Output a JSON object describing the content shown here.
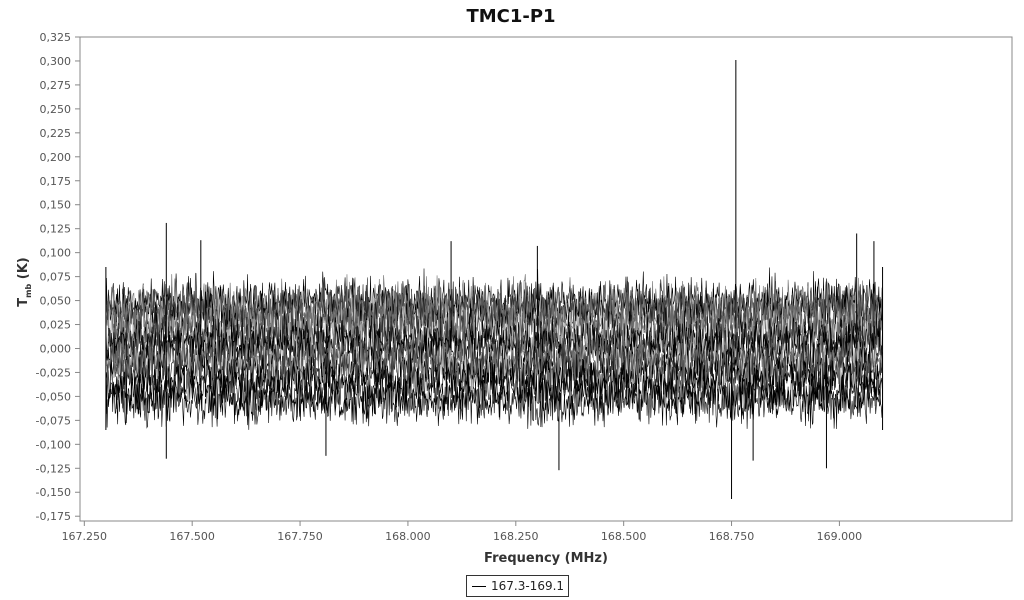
{
  "chart_data": {
    "type": "line",
    "title": "TMC1-P1",
    "xlabel": "Frequency (MHz)",
    "ylabel_main": "T",
    "ylabel_sub": "mb",
    "ylabel_unit": "(K)",
    "xlim": [
      167.24,
      169.4
    ],
    "ylim": [
      -0.18,
      0.325
    ],
    "x_ticks": [
      {
        "value": 167.25,
        "label": "167.250"
      },
      {
        "value": 167.5,
        "label": "167.500"
      },
      {
        "value": 167.75,
        "label": "167.750"
      },
      {
        "value": 168.0,
        "label": "168.000"
      },
      {
        "value": 168.25,
        "label": "168.250"
      },
      {
        "value": 168.5,
        "label": "168.500"
      },
      {
        "value": 168.75,
        "label": "168.750"
      },
      {
        "value": 169.0,
        "label": "169.000"
      }
    ],
    "y_ticks": [
      {
        "value": 0.325,
        "label": "0,325"
      },
      {
        "value": 0.3,
        "label": "0,300"
      },
      {
        "value": 0.275,
        "label": "0,275"
      },
      {
        "value": 0.25,
        "label": "0,250"
      },
      {
        "value": 0.225,
        "label": "0,225"
      },
      {
        "value": 0.2,
        "label": "0,200"
      },
      {
        "value": 0.175,
        "label": "0,175"
      },
      {
        "value": 0.15,
        "label": "0,150"
      },
      {
        "value": 0.125,
        "label": "0,125"
      },
      {
        "value": 0.1,
        "label": "0,100"
      },
      {
        "value": 0.075,
        "label": "0,075"
      },
      {
        "value": 0.05,
        "label": "0,050"
      },
      {
        "value": 0.025,
        "label": "0,025"
      },
      {
        "value": 0.0,
        "label": "0,000"
      },
      {
        "value": -0.025,
        "label": "-0,025"
      },
      {
        "value": -0.05,
        "label": "-0,050"
      },
      {
        "value": -0.075,
        "label": "-0,075"
      },
      {
        "value": -0.1,
        "label": "-0,100"
      },
      {
        "value": -0.125,
        "label": "-0,125"
      },
      {
        "value": -0.15,
        "label": "-0,150"
      },
      {
        "value": -0.175,
        "label": "-0,175"
      }
    ],
    "grid": false,
    "legend_position": "bottom-center",
    "series": [
      {
        "name": "167.3-169.1",
        "color": "#000000",
        "x_range": [
          167.3,
          169.1
        ],
        "noise_range": [
          -0.085,
          0.085
        ],
        "peaks": [
          {
            "x": 167.44,
            "y": 0.131
          },
          {
            "x": 167.52,
            "y": 0.113
          },
          {
            "x": 168.1,
            "y": 0.112
          },
          {
            "x": 168.3,
            "y": 0.107
          },
          {
            "x": 168.76,
            "y": 0.301
          },
          {
            "x": 169.04,
            "y": 0.12
          },
          {
            "x": 169.08,
            "y": 0.112
          }
        ],
        "troughs": [
          {
            "x": 167.44,
            "y": -0.115
          },
          {
            "x": 167.81,
            "y": -0.112
          },
          {
            "x": 168.35,
            "y": -0.127
          },
          {
            "x": 168.75,
            "y": -0.157
          },
          {
            "x": 168.8,
            "y": -0.117
          },
          {
            "x": 168.97,
            "y": -0.125
          }
        ]
      }
    ]
  }
}
